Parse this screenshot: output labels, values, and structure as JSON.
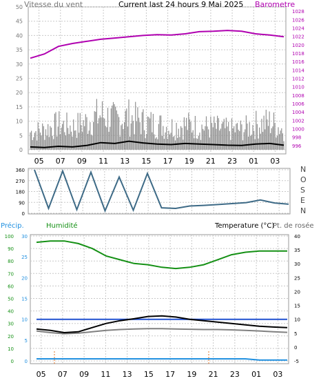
{
  "top": {
    "left_title": "Vitesse du vent",
    "center_title": "Current last 24 hours 9 Mai 2025",
    "right_title": "Barometre",
    "left_ticks": [
      "0",
      "5",
      "10",
      "15",
      "20",
      "25",
      "30",
      "35",
      "40",
      "45",
      "50"
    ],
    "right_ticks": [
      "996",
      "998",
      "1000",
      "1002",
      "1004",
      "1006",
      "1008",
      "1010",
      "1012",
      "1014",
      "1016",
      "1018",
      "1020",
      "1022",
      "1024",
      "1026",
      "1028"
    ],
    "hour_labels": [
      "05",
      "07",
      "09",
      "11",
      "13",
      "15",
      "17",
      "19",
      "21",
      "23",
      "01",
      "03"
    ]
  },
  "direction": {
    "left_ticks": [
      "0",
      "90",
      "180",
      "270",
      "360"
    ],
    "cardinals": [
      "N",
      "O",
      "S",
      "E",
      "N"
    ]
  },
  "bottom": {
    "precip_label": "Précip.",
    "humidity_label": "Humidité",
    "temp_label": "Temperature (°C)",
    "dew_label": "Pt. de rosée",
    "precip_ticks": [
      "0",
      "5",
      "10",
      "15",
      "20",
      "25",
      "30"
    ],
    "humidity_ticks": [
      "0",
      "10",
      "20",
      "30",
      "40",
      "50",
      "60",
      "70",
      "80",
      "90",
      "100"
    ],
    "temp_ticks": [
      "-5",
      "0",
      "5",
      "10",
      "15",
      "20",
      "25",
      "30",
      "35",
      "40"
    ],
    "hour_labels": [
      "05",
      "07",
      "09",
      "11",
      "13",
      "15",
      "17",
      "19",
      "21",
      "23",
      "01",
      "03"
    ]
  },
  "colors": {
    "pressure": "#b000b0",
    "gust": "#909090",
    "wind_avg": "#000000",
    "direction": "#3d6a86",
    "humidity": "#149014",
    "temperature": "#000000",
    "dewpoint": "#808080",
    "precip_rate": "#2050d0",
    "precip_total": "#2090e0",
    "precip_marker": "#e07020",
    "grid": "#c8c8c8"
  },
  "chart_data": [
    {
      "type": "line",
      "title": "Current last 24 hours 9 Mai 2025",
      "x_labels": [
        "05",
        "07",
        "09",
        "11",
        "13",
        "15",
        "17",
        "19",
        "21",
        "23",
        "01",
        "03"
      ],
      "ylabel": "Vitesse du vent",
      "ylim": [
        0,
        50
      ],
      "y2label": "Barometre",
      "y2lim": [
        995,
        1029
      ],
      "series": [
        {
          "name": "Barometre",
          "axis": "right",
          "values": [
            1016.8,
            1017.8,
            1019.6,
            1020.3,
            1020.8,
            1021.3,
            1021.6,
            1021.9,
            1022.2,
            1022.4,
            1022.3,
            1022.6,
            1023.1,
            1023.2,
            1023.4,
            1023.2,
            1022.6,
            1022.3,
            1021.9
          ]
        },
        {
          "values": [
            7,
            8,
            10,
            9,
            11,
            14,
            12,
            13,
            11,
            10,
            9,
            10,
            9,
            9,
            8,
            8,
            10,
            11,
            8
          ]
        },
        {
          "values": [
            1.0,
            0.8,
            1.2,
            1.0,
            1.5,
            2.5,
            2.2,
            3.0,
            2.4,
            2.0,
            1.8,
            2.2,
            2.0,
            1.8,
            1.6,
            1.5,
            2.0,
            2.2,
            1.6
          ]
        }
      ]
    },
    {
      "type": "line",
      "x_labels": [
        "05",
        "07",
        "09",
        "11",
        "13",
        "15",
        "17",
        "19",
        "21",
        "23",
        "01",
        "03"
      ],
      "ylim": [
        0,
        360
      ],
      "series": [
        {
          "values": [
            360,
            40,
            350,
            30,
            340,
            20,
            300,
            25,
            330,
            45,
            40,
            60,
            65,
            72,
            80,
            88,
            110,
            85,
            75
          ]
        }
      ]
    },
    {
      "type": "line",
      "x_labels": [
        "05",
        "07",
        "09",
        "11",
        "13",
        "15",
        "17",
        "19",
        "21",
        "23",
        "01",
        "03"
      ],
      "ylabel": "Précip.",
      "ylim": [
        0,
        30
      ],
      "y2label": "Temperature (°C)",
      "y2lim": [
        -5,
        40
      ],
      "series": [
        {
          "name": "Humidité",
          "axis": "humidity_0_100",
          "values": [
            95,
            96,
            96,
            94,
            90,
            84,
            81,
            78,
            77,
            75,
            74,
            75,
            77,
            81,
            85,
            87,
            88,
            88,
            88
          ]
        },
        {
          "name": "Temperature (°C)",
          "axis": "right",
          "values": [
            6.5,
            6.0,
            5.2,
            5.5,
            7.0,
            8.5,
            9.5,
            10.2,
            11.0,
            11.2,
            10.8,
            10.0,
            9.5,
            9.0,
            8.5,
            8.0,
            7.5,
            7.2,
            7.0
          ]
        },
        {
          "name": "Pt. de rosée",
          "axis": "right",
          "values": [
            5.8,
            5.2,
            4.8,
            5.0,
            5.5,
            6.0,
            6.3,
            6.5,
            6.6,
            6.6,
            6.5,
            6.4,
            6.3,
            6.3,
            6.2,
            6.0,
            5.8,
            5.5,
            5.3
          ]
        },
        {
          "values": [
            10,
            10,
            10,
            10,
            10,
            10,
            10,
            10,
            10,
            10,
            10,
            10,
            10,
            10,
            10,
            10,
            10,
            10,
            10
          ]
        },
        {
          "values": [
            0.5,
            0.5,
            0.5,
            0.5,
            0.5,
            0.5,
            0.5,
            0.5,
            0.5,
            0.5,
            0.5,
            0.5,
            0.5,
            0.5,
            0.5,
            0.5,
            0.2,
            0.2,
            0.2
          ]
        }
      ]
    }
  ]
}
